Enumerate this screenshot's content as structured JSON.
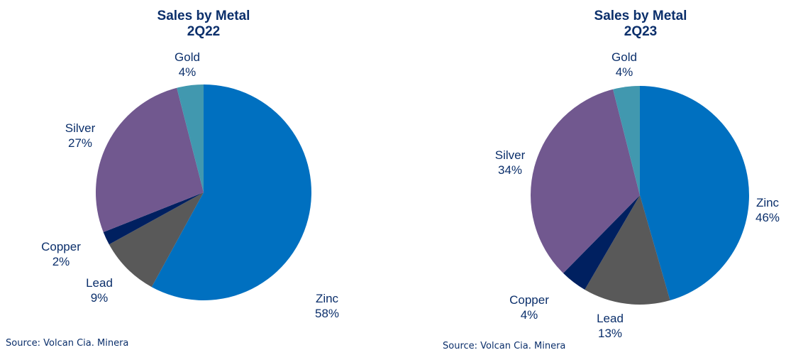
{
  "chart_data": [
    {
      "type": "pie",
      "title": "Sales by Metal",
      "subtitle": "2Q22",
      "slices": [
        {
          "name": "Zinc",
          "value": 58,
          "label": "58%",
          "color": "#0070c0"
        },
        {
          "name": "Lead",
          "value": 9,
          "label": "9%",
          "color": "#595959"
        },
        {
          "name": "Copper",
          "value": 2,
          "label": "2%",
          "color": "#002060"
        },
        {
          "name": "Silver",
          "value": 27,
          "label": "27%",
          "color": "#71588f"
        },
        {
          "name": "Gold",
          "value": 4,
          "label": "4%",
          "color": "#4198af"
        }
      ],
      "source": "Source: Volcan Cia. Minera"
    },
    {
      "type": "pie",
      "title": "Sales by Metal",
      "subtitle": "2Q23",
      "slices": [
        {
          "name": "Zinc",
          "value": 46,
          "label": "46%",
          "color": "#0070c0"
        },
        {
          "name": "Lead",
          "value": 13,
          "label": "13%",
          "color": "#595959"
        },
        {
          "name": "Copper",
          "value": 4,
          "label": "4%",
          "color": "#002060"
        },
        {
          "name": "Silver",
          "value": 34,
          "label": "34%",
          "color": "#71588f"
        },
        {
          "name": "Gold",
          "value": 4,
          "label": "4%",
          "color": "#4198af"
        }
      ],
      "source": "Source: Volcan Cia. Minera"
    }
  ]
}
